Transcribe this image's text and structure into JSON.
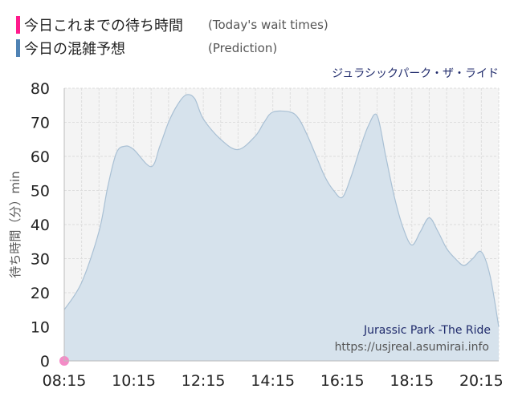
{
  "legend": {
    "items": [
      {
        "label_jp": "今日これまでの待ち時間",
        "label_en": "(Today's wait times)",
        "color": "#ff1a8c"
      },
      {
        "label_jp": "今日の混雑予想",
        "label_en": "(Prediction)",
        "color": "#4f82b4"
      }
    ]
  },
  "attraction_name": "ジュラシックパーク・ザ・ライド",
  "watermark": {
    "title": "Jurassic Park -The Ride",
    "url": "https://usjreal.asumirai.info"
  },
  "chart_data": {
    "type": "area",
    "ylabel": "待ち時間（分）min",
    "ylim": [
      0,
      80
    ],
    "y_ticks": [
      0,
      10,
      20,
      30,
      40,
      50,
      60,
      70,
      80
    ],
    "x_ticks": [
      "08:15",
      "10:15",
      "12:15",
      "14:15",
      "16:15",
      "18:15",
      "20:15"
    ],
    "xlim": [
      "08:15",
      "20:45"
    ],
    "grid": true,
    "series": [
      {
        "name": "今日の混雑予想",
        "color": "#4f82b4",
        "fill": "#d6e2ec",
        "x": [
          "08:15",
          "08:45",
          "09:15",
          "09:30",
          "09:45",
          "10:00",
          "10:15",
          "10:45",
          "11:00",
          "11:15",
          "11:30",
          "11:45",
          "12:00",
          "12:15",
          "12:45",
          "13:15",
          "13:45",
          "14:00",
          "14:15",
          "14:45",
          "15:00",
          "15:15",
          "15:30",
          "15:45",
          "16:00",
          "16:15",
          "16:30",
          "16:45",
          "17:00",
          "17:15",
          "17:30",
          "17:45",
          "18:00",
          "18:15",
          "18:30",
          "18:45",
          "19:00",
          "19:15",
          "19:30",
          "19:45",
          "20:00",
          "20:15",
          "20:30",
          "20:45"
        ],
        "values": [
          15,
          23,
          38,
          51,
          61,
          63,
          62,
          57,
          63,
          70,
          75,
          78,
          77,
          71,
          65,
          62,
          66,
          70,
          73,
          73,
          71,
          66,
          60,
          54,
          50,
          48,
          54,
          62,
          69,
          72,
          60,
          48,
          39,
          34,
          38,
          42,
          38,
          33,
          30,
          28,
          30,
          32,
          25,
          10
        ]
      },
      {
        "name": "今日これまでの待ち時間",
        "color": "#ff1a8c",
        "x": [
          "08:15"
        ],
        "values": [
          0
        ]
      }
    ]
  }
}
